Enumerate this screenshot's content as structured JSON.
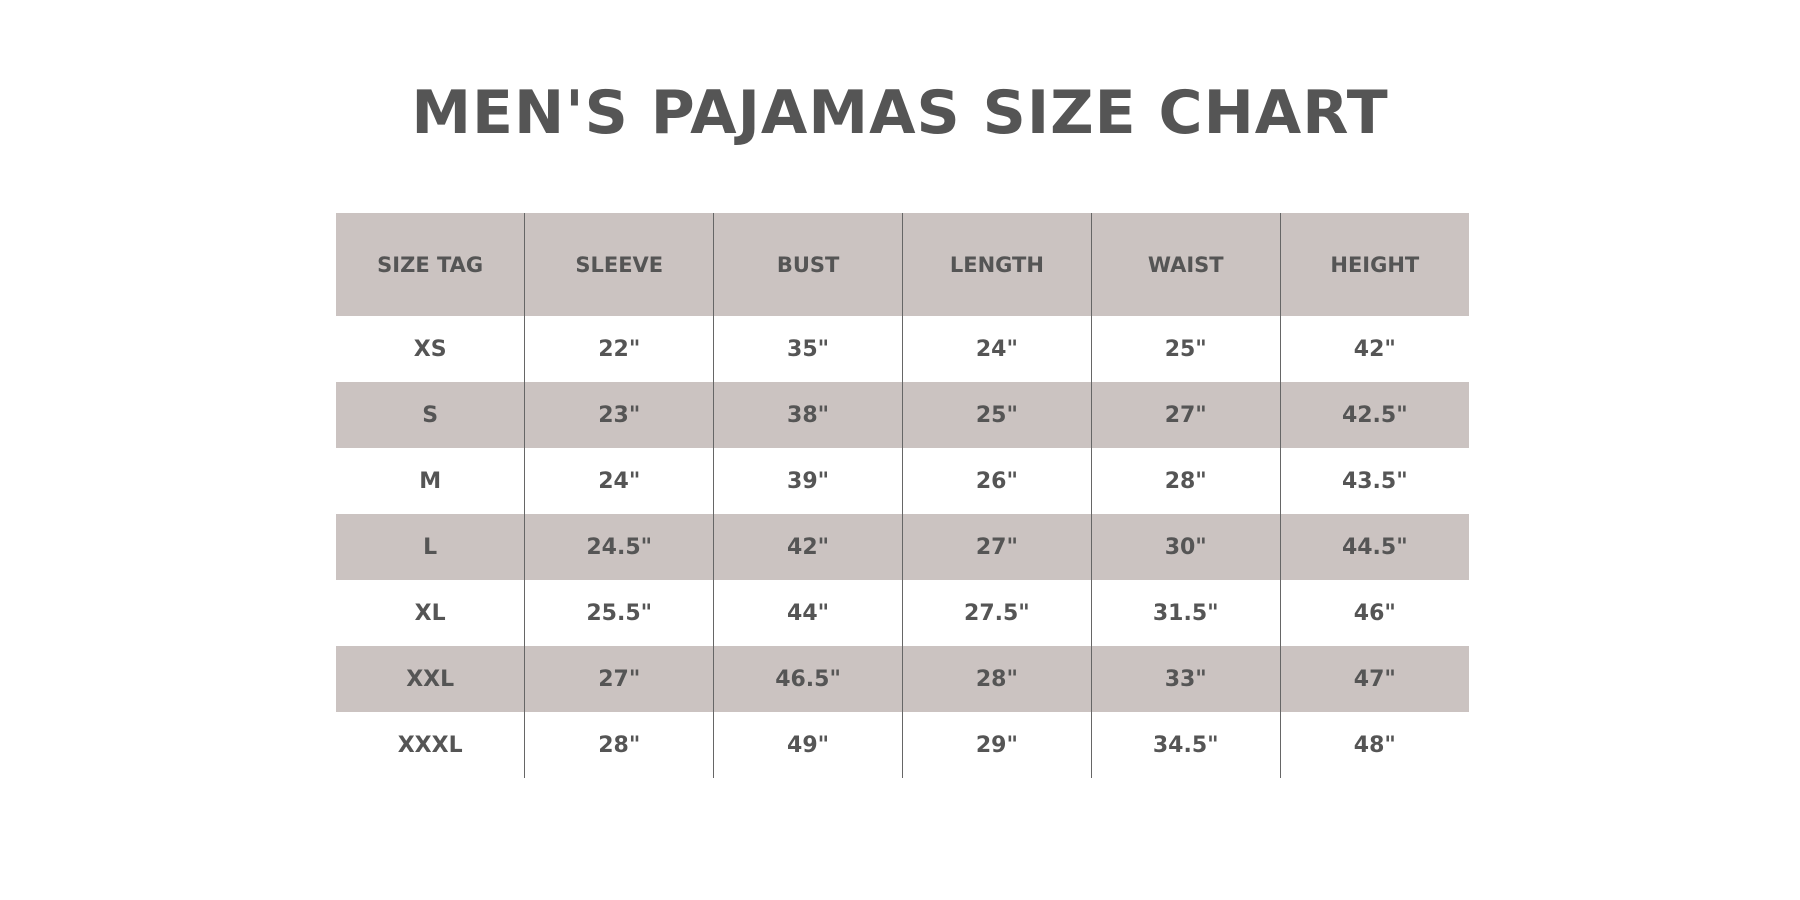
{
  "title": "MEN'S PAJAMAS SIZE CHART",
  "colors": {
    "header_bg": "#cbc3c1",
    "text": "#555555",
    "divider": "#666666"
  },
  "table": {
    "headers": [
      "SIZE TAG",
      "SLEEVE",
      "BUST",
      "LENGTH",
      "WAIST",
      "HEIGHT"
    ],
    "rows": [
      [
        "XS",
        "22\"",
        "35\"",
        "24\"",
        "25\"",
        "42\""
      ],
      [
        "S",
        "23\"",
        "38\"",
        "25\"",
        "27\"",
        "42.5\""
      ],
      [
        "M",
        "24\"",
        "39\"",
        "26\"",
        "28\"",
        "43.5\""
      ],
      [
        "L",
        "24.5\"",
        "42\"",
        "27\"",
        "30\"",
        "44.5\""
      ],
      [
        "XL",
        "25.5\"",
        "44\"",
        "27.5\"",
        "31.5\"",
        "46\""
      ],
      [
        "XXL",
        "27\"",
        "46.5\"",
        "28\"",
        "33\"",
        "47\""
      ],
      [
        "XXXL",
        "28\"",
        "49\"",
        "29\"",
        "34.5\"",
        "48\""
      ]
    ]
  }
}
